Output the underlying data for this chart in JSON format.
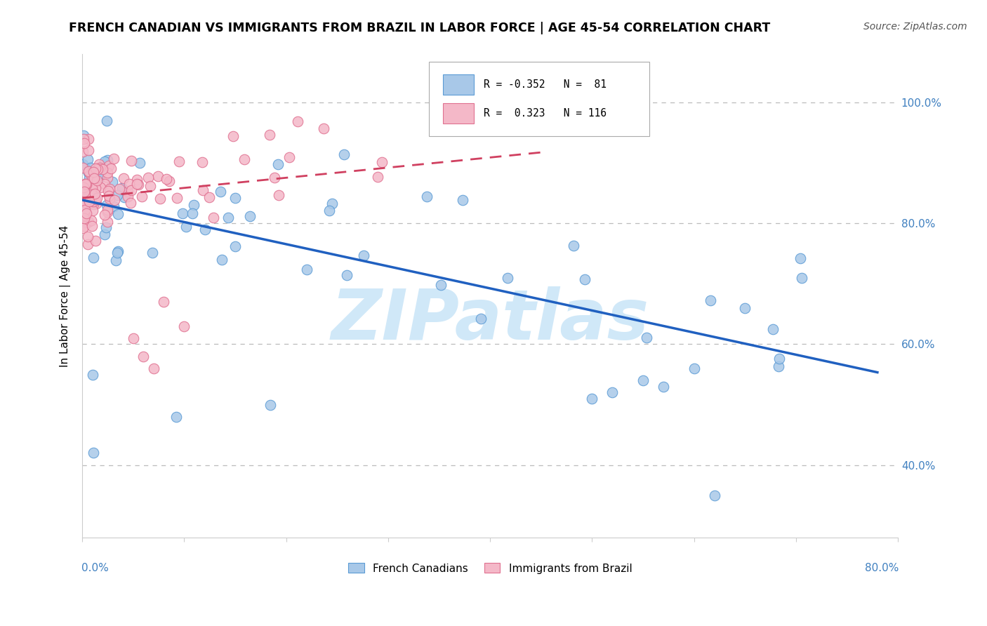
{
  "title": "FRENCH CANADIAN VS IMMIGRANTS FROM BRAZIL IN LABOR FORCE | AGE 45-54 CORRELATION CHART",
  "source": "Source: ZipAtlas.com",
  "ylabel": "In Labor Force | Age 45-54",
  "ytick_values": [
    0.4,
    0.6,
    0.8,
    1.0
  ],
  "xlim": [
    0.0,
    0.8
  ],
  "ylim": [
    0.28,
    1.08
  ],
  "blue_color": "#a8c8e8",
  "blue_edge_color": "#5b9bd5",
  "pink_color": "#f4b8c8",
  "pink_edge_color": "#e07090",
  "trendline_blue_color": "#2060c0",
  "trendline_pink_color": "#d04060",
  "watermark": "ZIPatlas",
  "watermark_color": "#d0e8f8",
  "dashed_line_color": "#bbbbbb",
  "blue_r": "-0.352",
  "blue_n": "81",
  "pink_r": "0.323",
  "pink_n": "116"
}
